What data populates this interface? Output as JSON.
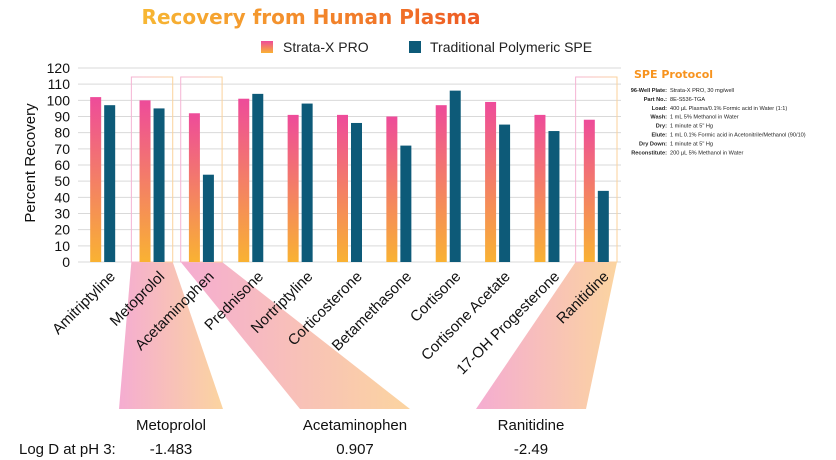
{
  "chart_data": {
    "type": "bar",
    "title": "Recovery from Human Plasma",
    "ylabel": "Percent Recovery",
    "ylim": [
      0,
      120
    ],
    "yticks": [
      0,
      10,
      20,
      30,
      40,
      50,
      60,
      70,
      80,
      90,
      100,
      110,
      120
    ],
    "grid": "horizontal",
    "legend_position": "top",
    "categories": [
      "Amitriptyline",
      "Metoprolol",
      "Acetaminophen",
      "Prednisone",
      "Nortriptyline",
      "Corticosterone",
      "Betamethasone",
      "Cortisone",
      "Cortisone Acetate",
      "17-OH Progesterone",
      "Ranitidine"
    ],
    "series": [
      {
        "name": "Strata-X PRO",
        "values": [
          102,
          100,
          92,
          101,
          91,
          91,
          90,
          97,
          99,
          91,
          88
        ]
      },
      {
        "name": "Traditional Polymeric SPE",
        "values": [
          97,
          95,
          54,
          104,
          98,
          86,
          72,
          106,
          85,
          81,
          44
        ]
      }
    ],
    "highlighted": [
      "Metoprolol",
      "Acetaminophen",
      "Ranitidine"
    ]
  },
  "colors": {
    "strata_top": "#ee4b9a",
    "strata_bottom": "#f9b233",
    "traditional": "#0d5a78",
    "title_start": "#f7b733",
    "title_end": "#ee5a24",
    "protocol_title": "#f7931e",
    "grid": "#d9d9d9"
  },
  "logd": {
    "label": "Log D at pH 3:",
    "items": [
      {
        "name": "Metoprolol",
        "value": "-1.483"
      },
      {
        "name": "Acetaminophen",
        "value": "0.907"
      },
      {
        "name": "Ranitidine",
        "value": "-2.49"
      }
    ]
  },
  "protocol": {
    "title": "SPE Protocol",
    "rows": [
      {
        "key": "96-Well Plate:",
        "value": "Strata-X PRO, 30 mg/well"
      },
      {
        "key": "Part No.:",
        "value": "8E-S536-TGA"
      },
      {
        "key": "Load:",
        "value": "400 µL Plasma/0.1% Formic acid in Water (1:1)"
      },
      {
        "key": "Wash:",
        "value": "1 mL 5% Methanol in Water"
      },
      {
        "key": "Dry:",
        "value": "1 minute at 5\" Hg"
      },
      {
        "key": "Elute:",
        "value": "1 mL 0.1% Formic acid in Acetonitrile/Methanol (90/10)"
      },
      {
        "key": "Dry Down:",
        "value": "1 minute at 5\" Hg"
      },
      {
        "key": "Reconstitute:",
        "value": "200 µL 5% Methanol in Water"
      }
    ]
  }
}
